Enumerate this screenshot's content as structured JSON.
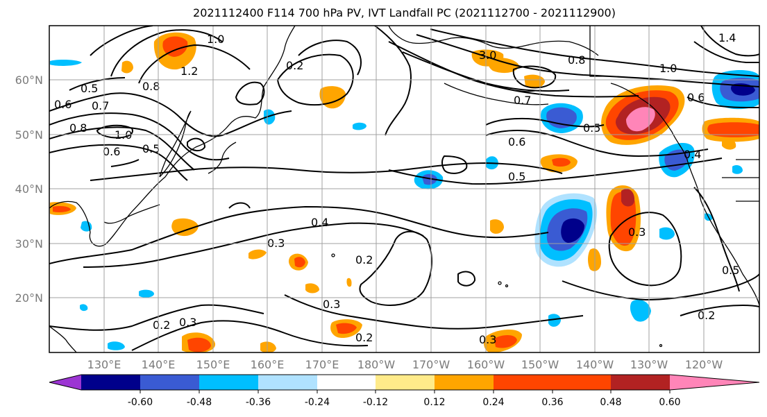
{
  "title": "2021112400 F114 700 hPa PV, IVT Landfall PC (2021112700 - 2021112900)",
  "lat_labels": [
    "60°N",
    "50°N",
    "40°N",
    "30°N",
    "20°N"
  ],
  "lon_labels": [
    "130°E",
    "140°E",
    "150°E",
    "160°E",
    "170°E",
    "180°W",
    "170°W",
    "160°W",
    "150°W",
    "140°W",
    "130°W",
    "120°W"
  ],
  "contour_labels": [
    "1.0",
    "1.2",
    "0.5",
    "0.6",
    "0.7",
    "0.8",
    "1.0",
    "0.6",
    "0.5",
    "0.3",
    "0.4",
    "0.3",
    "0.2",
    "0.3",
    "0.2",
    "0.2",
    "0.3",
    "0.2",
    "3.0",
    "0.8",
    "1.0",
    "0.7",
    "0.5",
    "0.6",
    "0.5",
    "0.6",
    "0.4",
    "0.3",
    "1.4",
    "0.5",
    "0.2",
    "0.8"
  ],
  "colorbar": {
    "colors": [
      "#9c35d3",
      "#00008b",
      "#3a5bd3",
      "#00bfff",
      "#b0e2ff",
      "#ffffff",
      "#ffeb8a",
      "#ffa500",
      "#ff4500",
      "#b22222",
      "#ff85b8"
    ],
    "ticks": [
      "-0.60",
      "-0.48",
      "-0.36",
      "-0.24",
      "-0.12",
      "0.12",
      "0.24",
      "0.36",
      "0.48",
      "0.60"
    ]
  },
  "colors": {
    "grid": "#a0a0a0",
    "coast": "#000000",
    "contour": "#000000",
    "axis_label": "#7a7a7a"
  }
}
